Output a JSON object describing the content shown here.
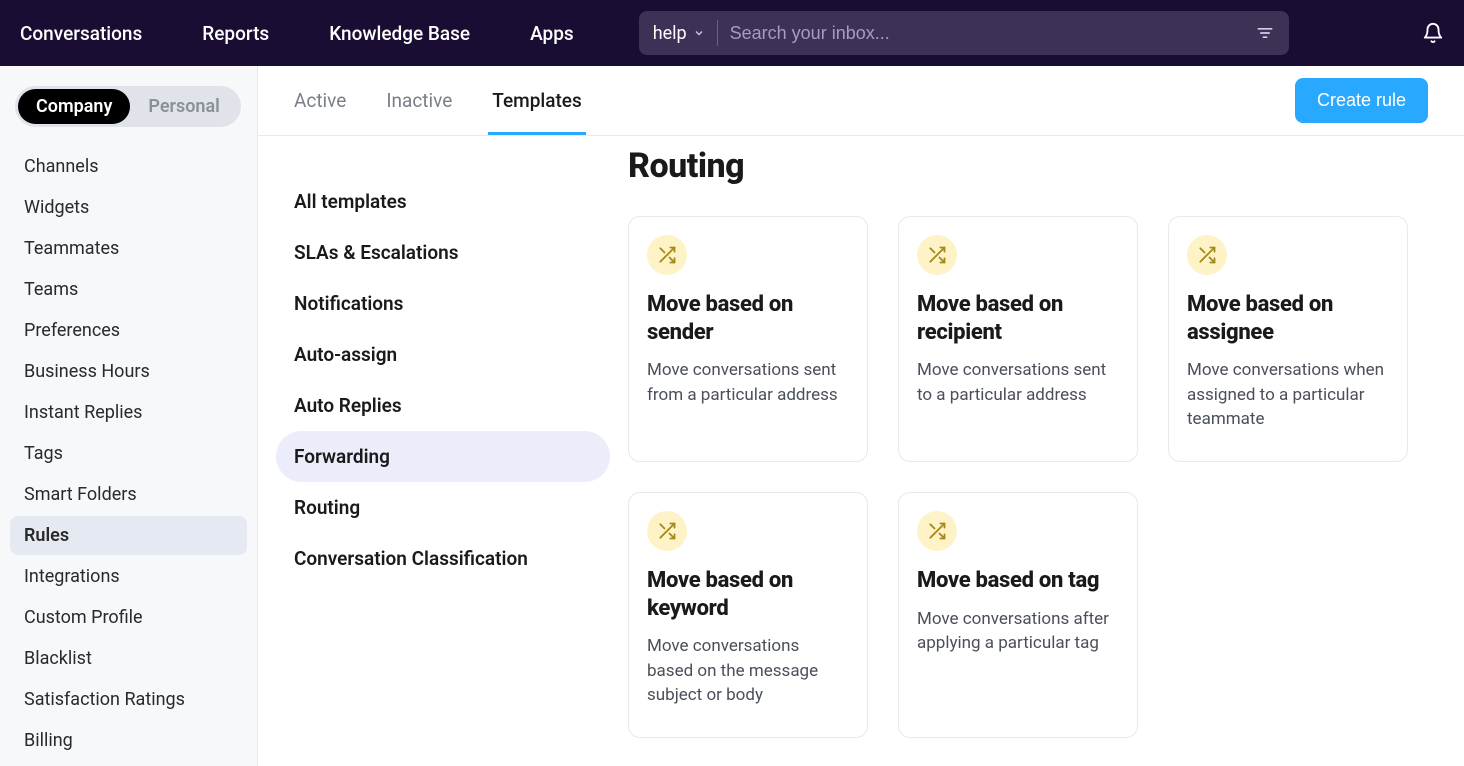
{
  "topnav": {
    "items": [
      "Conversations",
      "Reports",
      "Knowledge Base",
      "Apps"
    ]
  },
  "search": {
    "scope": "help",
    "placeholder": "Search your inbox..."
  },
  "scope_toggle": {
    "company": "Company",
    "personal": "Personal",
    "active": "company"
  },
  "sidebar": {
    "items": [
      "Channels",
      "Widgets",
      "Teammates",
      "Teams",
      "Preferences",
      "Business Hours",
      "Instant Replies",
      "Tags",
      "Smart Folders",
      "Rules",
      "Integrations",
      "Custom Profile",
      "Blacklist",
      "Satisfaction Ratings",
      "Billing"
    ],
    "active_index": 9
  },
  "tabs": {
    "items": [
      "Active",
      "Inactive",
      "Templates"
    ],
    "active_index": 2
  },
  "create_button": "Create rule",
  "categories": {
    "items": [
      "All templates",
      "SLAs & Escalations",
      "Notifications",
      "Auto-assign",
      "Auto Replies",
      "Forwarding",
      "Routing",
      "Conversation Classification"
    ],
    "active_index": 5
  },
  "section": {
    "title": "Routing",
    "icon_bg": "#fdf3c7",
    "icon_color": "#a68a1c",
    "cards": [
      {
        "title": "Move based on sender",
        "desc": "Move conversations sent from a particular address"
      },
      {
        "title": "Move based on recipient",
        "desc": "Move conversations sent to a particular address"
      },
      {
        "title": "Move based on assignee",
        "desc": "Move conversations when assigned to a particular teammate"
      },
      {
        "title": "Move based on keyword",
        "desc": "Move conversations based on the message subject or body"
      },
      {
        "title": "Move based on tag",
        "desc": "Move conversations after applying a particular tag"
      }
    ]
  },
  "colors": {
    "topbar_bg": "#1a0d33",
    "accent": "#29a8ff",
    "sidebar_bg": "#f6f8fa",
    "pill_bg": "#ebedfa",
    "border": "#e6e9ee"
  }
}
